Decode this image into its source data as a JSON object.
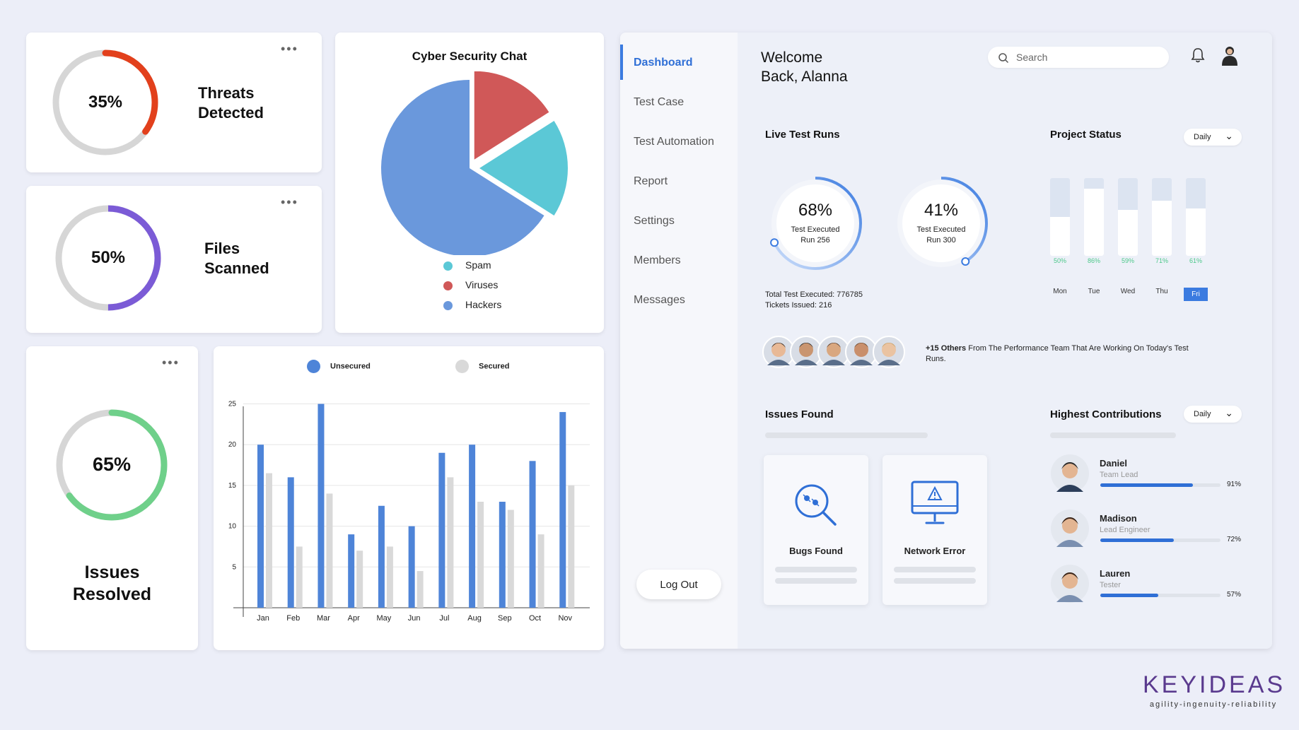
{
  "cards": {
    "threats": {
      "percent_label": "35%",
      "percent": 35,
      "label_line1": "Threats",
      "label_line2": "Detected",
      "color": "#e2401c"
    },
    "files": {
      "percent_label": "50%",
      "percent": 50,
      "label_line1": "Files",
      "label_line2": "Scanned",
      "color": "#7b5bd6"
    },
    "issues": {
      "percent_label": "65%",
      "percent": 65,
      "label_line1": "Issues",
      "label_line2": "Resolved",
      "color": "#6fd08a"
    }
  },
  "pie_chart": {
    "title": "Cyber Security Chat",
    "chart_data": {
      "type": "pie",
      "slices": [
        {
          "name": "Spam",
          "value": 18,
          "color": "#5bc8d6"
        },
        {
          "name": "Viruses",
          "value": 16,
          "color": "#d05858"
        },
        {
          "name": "Hackers",
          "value": 66,
          "color": "#6a98dc"
        }
      ]
    }
  },
  "bar_chart": {
    "chart_data": {
      "type": "bar",
      "categories": [
        "Jan",
        "Feb",
        "Mar",
        "Apr",
        "May",
        "Jun",
        "Jul",
        "Aug",
        "Sep",
        "Oct",
        "Nov"
      ],
      "series": [
        {
          "name": "Unsecured",
          "color": "#4e84d8",
          "values": [
            20,
            16,
            25,
            9,
            12.5,
            10,
            19,
            20,
            13,
            18,
            24
          ]
        },
        {
          "name": "Secured",
          "color": "#d9d9d9",
          "values": [
            16.5,
            7.5,
            14,
            7,
            7.5,
            4.5,
            16,
            13,
            12,
            9,
            15
          ]
        }
      ],
      "yticks": [
        5,
        10,
        15,
        20,
        25
      ],
      "ylim": [
        0,
        26
      ],
      "legend_position": "top"
    }
  },
  "dashboard": {
    "nav": [
      {
        "label": "Dashboard",
        "active": true
      },
      {
        "label": "Test Case"
      },
      {
        "label": "Test Automation"
      },
      {
        "label": "Report"
      },
      {
        "label": "Settings"
      },
      {
        "label": "Members"
      },
      {
        "label": "Messages"
      }
    ],
    "logout_label": "Log Out",
    "welcome_line1": "Welcome",
    "welcome_line2": "Back, Alanna",
    "search_placeholder": "Search",
    "live_test_runs": {
      "title": "Live Test Runs",
      "gauges": [
        {
          "percent_label": "68%",
          "percent": 68,
          "line1": "Test Executed",
          "line2": "Run 256"
        },
        {
          "percent_label": "41%",
          "percent": 41,
          "line1": "Test Executed",
          "line2": "Run 300"
        }
      ],
      "total_executed": "Total Test Executed: 776785",
      "tickets_issued": "Tickets Issued: 216"
    },
    "project_status": {
      "title": "Project Status",
      "dropdown": "Daily",
      "days": [
        {
          "day": "Mon",
          "pct_label": "50%",
          "pct": 50
        },
        {
          "day": "Tue",
          "pct_label": "86%",
          "pct": 86
        },
        {
          "day": "Wed",
          "pct_label": "59%",
          "pct": 59
        },
        {
          "day": "Thu",
          "pct_label": "71%",
          "pct": 71
        },
        {
          "day": "Fri",
          "pct_label": "61%",
          "pct": 61,
          "active": true
        }
      ]
    },
    "team": {
      "others_bold": "+15 Others",
      "others_rest": " From The Performance Team That Are Working On Today's Test Runs."
    },
    "issues_found": {
      "title": "Issues Found",
      "items": [
        {
          "label": "Bugs Found",
          "icon": "bug-search-icon"
        },
        {
          "label": "Network Error",
          "icon": "monitor-warning-icon"
        }
      ]
    },
    "highest_contributions": {
      "title": "Highest Contributions",
      "dropdown": "Daily",
      "people": [
        {
          "name": "Daniel",
          "role": "Team Lead",
          "pct_label": "91%",
          "pct": 91
        },
        {
          "name": "Madison",
          "role": "Lead Engineer",
          "pct_label": "72%",
          "pct": 72
        },
        {
          "name": "Lauren",
          "role": "Tester",
          "pct_label": "57%",
          "pct": 57
        }
      ]
    }
  },
  "brand": {
    "name": "KEYIDEAS",
    "tagline": "agility-ingenuity-reliability",
    "color": "#5a3a8e"
  }
}
